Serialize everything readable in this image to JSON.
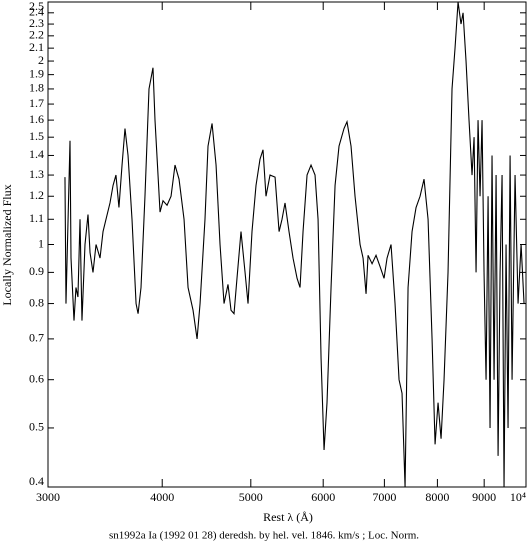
{
  "chart_data": {
    "type": "line",
    "xlabel": "Rest λ (Å)",
    "ylabel": "Locally Normalized Flux",
    "caption": "sn1992a Ia (1992 01 28) deredsh. by hel. vel.  1846. km/s ;  Loc. Norm.",
    "xscale": "log",
    "yscale": "log",
    "xlim": [
      3000,
      10000
    ],
    "ylim": [
      0.4,
      2.5
    ],
    "xticks": [
      3000,
      4000,
      5000,
      6000,
      7000,
      8000,
      9000,
      {
        "value": 10000,
        "label": "10⁴"
      }
    ],
    "yticks": [
      0.4,
      0.5,
      0.6,
      0.7,
      0.8,
      0.9,
      1,
      1.1,
      1.2,
      1.3,
      1.4,
      1.5,
      1.6,
      1.7,
      1.8,
      1.9,
      2,
      2.1,
      2.2,
      2.3,
      2.4,
      2.5
    ],
    "color": "#000000",
    "x": [
      3131,
      3139,
      3171,
      3179,
      3203,
      3219,
      3235,
      3252,
      3268,
      3293,
      3318,
      3335,
      3360,
      3386,
      3420,
      3446,
      3472,
      3507,
      3534,
      3560,
      3587,
      3615,
      3642,
      3670,
      3707,
      3745,
      3764,
      3792,
      3830,
      3869,
      3908,
      3928,
      3958,
      3978,
      4008,
      4049,
      4090,
      4131,
      4173,
      4226,
      4269,
      4323,
      4367,
      4400,
      4455,
      4489,
      4535,
      4581,
      4627,
      4674,
      4721,
      4757,
      4793,
      4829,
      4878,
      4928,
      4965,
      5015,
      5066,
      5117,
      5156,
      5195,
      5248,
      5315,
      5369,
      5409,
      5450,
      5505,
      5561,
      5618,
      5660,
      5703,
      5761,
      5819,
      5878,
      5923,
      5968,
      6013,
      6058,
      6120,
      6182,
      6244,
      6323,
      6371,
      6436,
      6501,
      6584,
      6634,
      6684,
      6718,
      6786,
      6854,
      6924,
      6994,
      7047,
      7118,
      7190,
      7263,
      7318,
      7374,
      7430,
      7505,
      7581,
      7658,
      7735,
      7814,
      7893,
      7953,
      8013,
      8074,
      8135,
      8217,
      8300,
      8363,
      8427,
      8490,
      8534,
      8598,
      8663,
      8729,
      8774,
      8818,
      8862,
      8907,
      8952,
      8997,
      9043,
      9089,
      9134,
      9180,
      9227,
      9274,
      9321,
      9368,
      9415,
      9462,
      9510,
      9558,
      9607,
      9655,
      9728,
      9802,
      9877,
      9951
    ],
    "values": [
      1.29,
      0.8,
      1.48,
      0.95,
      0.75,
      0.85,
      0.82,
      1.1,
      0.75,
      1.0,
      1.12,
      0.97,
      0.9,
      1.0,
      0.95,
      1.05,
      1.1,
      1.17,
      1.25,
      1.3,
      1.15,
      1.35,
      1.55,
      1.4,
      1.1,
      0.8,
      0.77,
      0.85,
      1.2,
      1.8,
      1.95,
      1.6,
      1.3,
      1.13,
      1.18,
      1.16,
      1.2,
      1.35,
      1.28,
      1.1,
      0.85,
      0.78,
      0.7,
      0.8,
      1.1,
      1.45,
      1.58,
      1.35,
      1.0,
      0.8,
      0.86,
      0.78,
      0.77,
      0.88,
      1.05,
      0.9,
      0.8,
      1.05,
      1.25,
      1.38,
      1.43,
      1.2,
      1.3,
      1.29,
      1.05,
      1.1,
      1.17,
      1.05,
      0.95,
      0.88,
      0.85,
      1.05,
      1.3,
      1.35,
      1.3,
      1.1,
      0.65,
      0.46,
      0.55,
      0.85,
      1.25,
      1.45,
      1.55,
      1.59,
      1.45,
      1.2,
      1.0,
      0.95,
      0.83,
      0.96,
      0.93,
      0.96,
      0.92,
      0.88,
      0.95,
      1.0,
      0.8,
      0.6,
      0.57,
      0.4,
      0.85,
      1.05,
      1.15,
      1.2,
      1.28,
      1.1,
      0.7,
      0.47,
      0.55,
      0.48,
      0.6,
      0.9,
      1.8,
      2.1,
      2.5,
      2.3,
      2.4,
      2.0,
      1.6,
      1.3,
      1.5,
      0.9,
      1.6,
      1.2,
      1.6,
      0.9,
      0.6,
      1.2,
      0.5,
      1.4,
      0.6,
      1.3,
      0.45,
      0.9,
      1.3,
      0.4,
      1.0,
      0.5,
      1.4,
      0.6,
      1.3,
      0.8,
      1.0,
      0.8
    ]
  }
}
